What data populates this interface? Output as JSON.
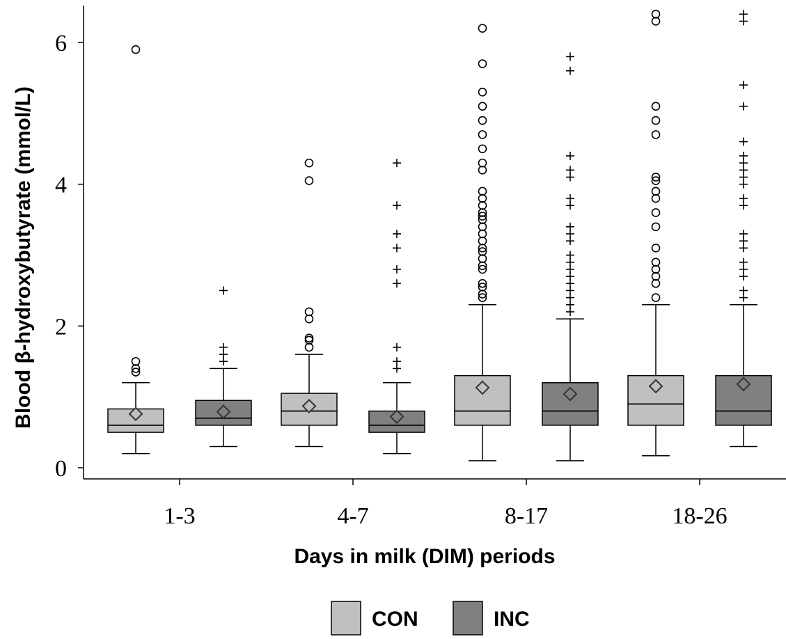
{
  "chart_data": {
    "type": "box",
    "xlabel": "Days in milk (DIM) periods",
    "ylabel": "Blood β-hydroxybutyrate (mmol/L)",
    "ylim": [
      0,
      6.5
    ],
    "yticks": [
      "0",
      "2",
      "4",
      "6"
    ],
    "grid": false,
    "legend_position": "bottom-center",
    "categories": [
      "1-3",
      "4-7",
      "8-17",
      "18-26"
    ],
    "series": [
      {
        "name": "CON",
        "color": "#c0c0c0",
        "outlier_marker": "circle",
        "boxes": [
          {
            "min": 0.2,
            "q1": 0.5,
            "median": 0.6,
            "q3": 0.83,
            "max": 1.2,
            "mean": 0.76,
            "outliers": [
              1.35,
              1.4,
              1.5,
              5.9
            ]
          },
          {
            "min": 0.3,
            "q1": 0.6,
            "median": 0.8,
            "q3": 1.05,
            "max": 1.6,
            "mean": 0.87,
            "outliers": [
              1.7,
              1.8,
              1.83,
              2.1,
              2.2,
              4.05,
              4.3
            ]
          },
          {
            "min": 0.1,
            "q1": 0.6,
            "median": 0.8,
            "q3": 1.3,
            "max": 2.3,
            "mean": 1.13,
            "outliers": [
              2.4,
              2.45,
              2.55,
              2.6,
              2.8,
              2.85,
              2.95,
              3.05,
              3.1,
              3.2,
              3.3,
              3.4,
              3.5,
              3.55,
              3.6,
              3.7,
              3.8,
              3.9,
              4.2,
              4.3,
              4.5,
              4.7,
              4.9,
              5.1,
              5.3,
              5.7,
              6.2
            ]
          },
          {
            "min": 0.17,
            "q1": 0.6,
            "median": 0.9,
            "q3": 1.3,
            "max": 2.3,
            "mean": 1.15,
            "outliers": [
              2.4,
              2.6,
              2.7,
              2.8,
              2.9,
              3.1,
              3.4,
              3.6,
              3.8,
              3.9,
              4.05,
              4.1,
              4.7,
              4.9,
              5.1,
              6.3,
              6.4
            ]
          }
        ]
      },
      {
        "name": "INC",
        "color": "#808080",
        "outlier_marker": "plus",
        "boxes": [
          {
            "min": 0.3,
            "q1": 0.6,
            "median": 0.7,
            "q3": 0.95,
            "max": 1.4,
            "mean": 0.79,
            "outliers": [
              1.5,
              1.6,
              1.7,
              2.5
            ]
          },
          {
            "min": 0.2,
            "q1": 0.5,
            "median": 0.6,
            "q3": 0.8,
            "max": 1.2,
            "mean": 0.72,
            "outliers": [
              1.4,
              1.5,
              1.7,
              2.6,
              2.8,
              3.1,
              3.3,
              3.7,
              4.3
            ]
          },
          {
            "min": 0.1,
            "q1": 0.6,
            "median": 0.8,
            "q3": 1.2,
            "max": 2.1,
            "mean": 1.04,
            "outliers": [
              2.2,
              2.3,
              2.4,
              2.5,
              2.6,
              2.7,
              2.8,
              2.9,
              3.0,
              3.2,
              3.3,
              3.4,
              3.7,
              3.8,
              4.1,
              4.2,
              4.4,
              5.6,
              5.8
            ]
          },
          {
            "min": 0.3,
            "q1": 0.6,
            "median": 0.8,
            "q3": 1.3,
            "max": 2.3,
            "mean": 1.18,
            "outliers": [
              2.4,
              2.5,
              2.7,
              2.8,
              2.9,
              3.1,
              3.2,
              3.3,
              3.7,
              3.8,
              4.0,
              4.1,
              4.2,
              4.3,
              4.4,
              4.6,
              5.1,
              5.4,
              6.3,
              6.4
            ]
          }
        ]
      }
    ]
  }
}
